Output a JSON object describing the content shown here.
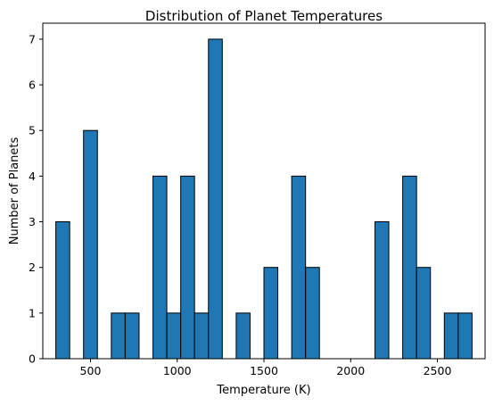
{
  "chart_data": {
    "type": "bar",
    "title": "Distribution of Planet Temperatures",
    "xlabel": "Temperature (K)",
    "ylabel": "Number of Planets",
    "xlim": [
      225,
      2775
    ],
    "ylim": [
      0,
      7.35
    ],
    "xticks": [
      500,
      1000,
      1500,
      2000,
      2500
    ],
    "yticks": [
      0,
      1,
      2,
      3,
      4,
      5,
      6,
      7
    ],
    "bar_color": "#1f77b4",
    "edge_color": "#000000",
    "grid": false,
    "bins": [
      {
        "x0": 300,
        "x1": 380,
        "count": 3
      },
      {
        "x0": 380,
        "x1": 460,
        "count": 0
      },
      {
        "x0": 460,
        "x1": 540,
        "count": 5
      },
      {
        "x0": 540,
        "x1": 620,
        "count": 0
      },
      {
        "x0": 620,
        "x1": 700,
        "count": 1
      },
      {
        "x0": 700,
        "x1": 780,
        "count": 1
      },
      {
        "x0": 780,
        "x1": 860,
        "count": 0
      },
      {
        "x0": 860,
        "x1": 940,
        "count": 4
      },
      {
        "x0": 940,
        "x1": 1020,
        "count": 1
      },
      {
        "x0": 1020,
        "x1": 1100,
        "count": 4
      },
      {
        "x0": 1100,
        "x1": 1180,
        "count": 1
      },
      {
        "x0": 1180,
        "x1": 1260,
        "count": 7
      },
      {
        "x0": 1260,
        "x1": 1340,
        "count": 0
      },
      {
        "x0": 1340,
        "x1": 1420,
        "count": 1
      },
      {
        "x0": 1420,
        "x1": 1500,
        "count": 0
      },
      {
        "x0": 1500,
        "x1": 1580,
        "count": 2
      },
      {
        "x0": 1580,
        "x1": 1660,
        "count": 0
      },
      {
        "x0": 1660,
        "x1": 1740,
        "count": 4
      },
      {
        "x0": 1740,
        "x1": 1820,
        "count": 2
      },
      {
        "x0": 1820,
        "x1": 1900,
        "count": 0
      },
      {
        "x0": 1900,
        "x1": 1980,
        "count": 0
      },
      {
        "x0": 1980,
        "x1": 2060,
        "count": 0
      },
      {
        "x0": 2060,
        "x1": 2140,
        "count": 0
      },
      {
        "x0": 2140,
        "x1": 2220,
        "count": 3
      },
      {
        "x0": 2220,
        "x1": 2300,
        "count": 0
      },
      {
        "x0": 2300,
        "x1": 2380,
        "count": 4
      },
      {
        "x0": 2380,
        "x1": 2460,
        "count": 2
      },
      {
        "x0": 2460,
        "x1": 2540,
        "count": 0
      },
      {
        "x0": 2540,
        "x1": 2620,
        "count": 1
      },
      {
        "x0": 2620,
        "x1": 2700,
        "count": 1
      }
    ]
  }
}
